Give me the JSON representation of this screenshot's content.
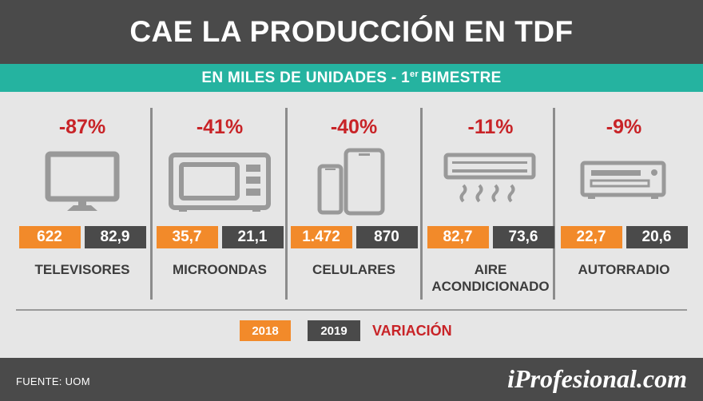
{
  "header": {
    "title": "CAE LA PRODUCCIÓN EN TDF"
  },
  "subheader": {
    "text_before": "EN MILES DE UNIDADES - 1",
    "superscript": "er",
    "text_after": "BIMESTRE"
  },
  "chart_data": {
    "type": "table",
    "title": "CAE LA PRODUCCIÓN EN TDF",
    "subtitle": "EN MILES DE UNIDADES - 1er BIMESTRE",
    "categories": [
      "TELEVISORES",
      "MICROONDAS",
      "CELULARES",
      "AIRE ACONDICIONADO",
      "AUTORRADIO"
    ],
    "series": [
      {
        "name": "2018",
        "values": [
          622,
          35.7,
          1472,
          82.7,
          22.7
        ],
        "labels": [
          "622",
          "35,7",
          "1.472",
          "82,7",
          "22,7"
        ]
      },
      {
        "name": "2019",
        "values": [
          82.9,
          21.1,
          870,
          73.6,
          20.6
        ],
        "labels": [
          "82,9",
          "21,1",
          "870",
          "73,6",
          "20,6"
        ]
      },
      {
        "name": "VARIACIÓN",
        "values": [
          -87,
          -41,
          -40,
          -11,
          -9
        ],
        "labels": [
          "-87%",
          "-41%",
          "-40%",
          "-11%",
          "-9%"
        ]
      }
    ],
    "items": [
      {
        "name_lines": [
          "TELEVISORES"
        ],
        "icon": "tv-icon",
        "variation": "-87%",
        "v2018": "622",
        "v2019": "82,9"
      },
      {
        "name_lines": [
          "MICROONDAS"
        ],
        "icon": "microwave-icon",
        "variation": "-41%",
        "v2018": "35,7",
        "v2019": "21,1"
      },
      {
        "name_lines": [
          "CELULARES"
        ],
        "icon": "phones-icon",
        "variation": "-40%",
        "v2018": "1.472",
        "v2019": "870"
      },
      {
        "name_lines": [
          "AIRE",
          "ACONDICIONADO"
        ],
        "icon": "air-conditioner-icon",
        "variation": "-11%",
        "v2018": "82,7",
        "v2019": "73,6"
      },
      {
        "name_lines": [
          "AUTORRADIO"
        ],
        "icon": "car-radio-icon",
        "variation": "-9%",
        "v2018": "22,7",
        "v2019": "20,6"
      }
    ]
  },
  "legend": {
    "label_2018": "2018",
    "label_2019": "2019",
    "label_variation": "VARIACIÓN"
  },
  "footer": {
    "source": "FUENTE: UOM",
    "brand": "iProfesional.com"
  },
  "colors": {
    "accent_orange": "#f28a2a",
    "dark_gray": "#4a4a4a",
    "teal": "#25b3a0",
    "red": "#c82327",
    "panel_bg": "#e6e6e6"
  }
}
